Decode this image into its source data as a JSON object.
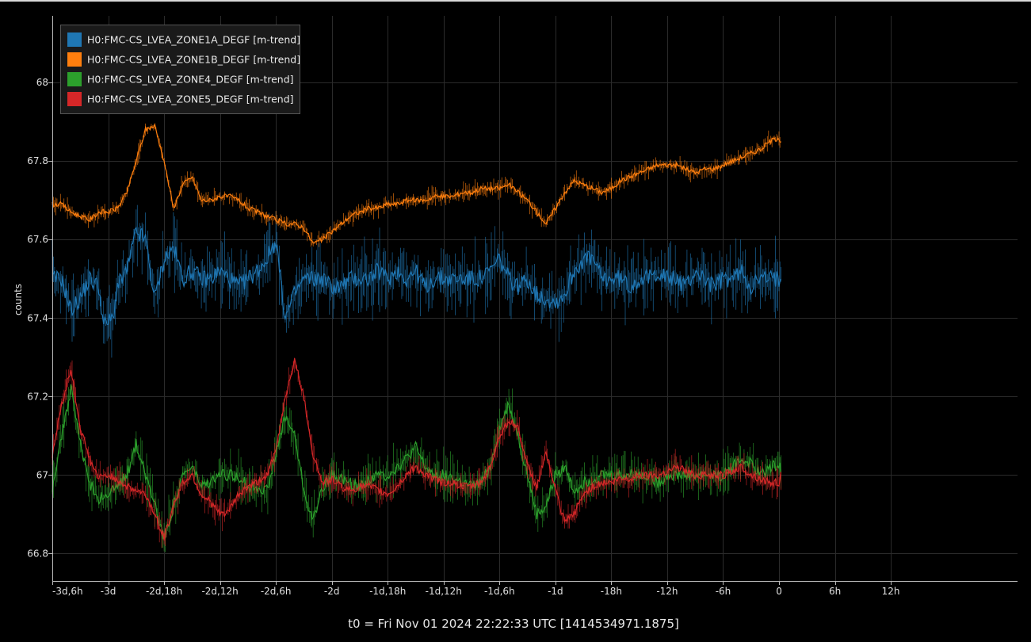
{
  "chart_data": {
    "type": "line",
    "ylabel": "counts",
    "footer": "t0 = Fri Nov 01 2024 22:22:33 UTC [1414534971.1875]",
    "xlim_hours": [
      -78,
      25.6
    ],
    "ylim": [
      66.73,
      68.17
    ],
    "grid": true,
    "legend_position": "top-left",
    "x_ticks": [
      {
        "value": -78,
        "label": "-3d,6h"
      },
      {
        "value": -72,
        "label": "-3d"
      },
      {
        "value": -66,
        "label": "-2d,18h"
      },
      {
        "value": -60,
        "label": "-2d,12h"
      },
      {
        "value": -54,
        "label": "-2d,6h"
      },
      {
        "value": -48,
        "label": "-2d"
      },
      {
        "value": -42,
        "label": "-1d,18h"
      },
      {
        "value": -36,
        "label": "-1d,12h"
      },
      {
        "value": -30,
        "label": "-1d,6h"
      },
      {
        "value": -24,
        "label": "-1d"
      },
      {
        "value": -18,
        "label": "-18h"
      },
      {
        "value": -12,
        "label": "-12h"
      },
      {
        "value": -6,
        "label": "-6h"
      },
      {
        "value": 0,
        "label": "0"
      },
      {
        "value": 6,
        "label": "6h"
      },
      {
        "value": 12,
        "label": "12h"
      }
    ],
    "y_ticks": [
      {
        "value": 66.8,
        "label": "66.8"
      },
      {
        "value": 67.0,
        "label": "67"
      },
      {
        "value": 67.2,
        "label": "67.2"
      },
      {
        "value": 67.4,
        "label": "67.4"
      },
      {
        "value": 67.6,
        "label": "67.6"
      },
      {
        "value": 67.8,
        "label": "67.8"
      },
      {
        "value": 68.0,
        "label": "68"
      }
    ],
    "series": [
      {
        "name": "H0:FMC-CS_LVEA_ZONE1A_DEGF [m-trend]",
        "color": "#1f77b4",
        "x": [
          -78,
          -77,
          -76,
          -75,
          -74,
          -73,
          -72.5,
          -71.5,
          -71,
          -70,
          -69,
          -68,
          -67,
          -66,
          -65,
          -64,
          -63,
          -62,
          -61,
          -60,
          -59,
          -58,
          -57,
          -56,
          -55,
          -54,
          -53,
          -52,
          -51,
          -50,
          -49,
          -48,
          -47,
          -46,
          -45,
          -44,
          -43,
          -42,
          -41,
          -40,
          -39,
          -38,
          -37,
          -36,
          -35,
          -34,
          -33,
          -32,
          -31,
          -30,
          -29,
          -28,
          -27,
          -26,
          -25,
          -24,
          -23,
          -22,
          -21,
          -20,
          -19,
          -18,
          -17,
          -16,
          -15,
          -14,
          -13,
          -12,
          -11,
          -10,
          -9,
          -8,
          -7,
          -6,
          -5,
          -4,
          -3,
          -2,
          -1,
          0,
          0.2
        ],
        "y": [
          67.5,
          67.5,
          67.42,
          67.45,
          67.5,
          67.48,
          67.38,
          67.4,
          67.48,
          67.52,
          67.62,
          67.6,
          67.45,
          67.55,
          67.58,
          67.5,
          67.52,
          67.5,
          67.5,
          67.52,
          67.5,
          67.48,
          67.5,
          67.52,
          67.55,
          67.6,
          67.4,
          67.46,
          67.5,
          67.5,
          67.5,
          67.48,
          67.48,
          67.5,
          67.5,
          67.5,
          67.52,
          67.5,
          67.52,
          67.5,
          67.52,
          67.48,
          67.5,
          67.5,
          67.5,
          67.5,
          67.5,
          67.5,
          67.52,
          67.55,
          67.5,
          67.48,
          67.5,
          67.46,
          67.45,
          67.44,
          67.46,
          67.52,
          67.55,
          67.55,
          67.5,
          67.5,
          67.5,
          67.48,
          67.5,
          67.5,
          67.52,
          67.5,
          67.5,
          67.48,
          67.52,
          67.5,
          67.48,
          67.5,
          67.5,
          67.52,
          67.48,
          67.5,
          67.5,
          67.5,
          67.5
        ]
      },
      {
        "name": "H0:FMC-CS_LVEA_ZONE1B_DEGF [m-trend]",
        "color": "#ff7f0e",
        "x": [
          -78,
          -77,
          -76,
          -75,
          -74,
          -73,
          -72,
          -71,
          -70,
          -69,
          -68,
          -67,
          -66,
          -65,
          -64,
          -63,
          -62,
          -61,
          -60,
          -59,
          -58,
          -57,
          -56,
          -55,
          -54,
          -53,
          -52,
          -51,
          -50,
          -49,
          -48,
          -47,
          -46,
          -45,
          -44,
          -43,
          -42,
          -41,
          -40,
          -39,
          -38,
          -37,
          -36,
          -35,
          -34,
          -33,
          -32,
          -31,
          -30,
          -29,
          -28,
          -27,
          -26,
          -25,
          -24,
          -23,
          -22,
          -21,
          -20,
          -19,
          -18,
          -17,
          -16,
          -15,
          -14,
          -13,
          -12,
          -11,
          -10,
          -9,
          -8,
          -7,
          -6,
          -5,
          -4,
          -3,
          -2,
          -1,
          0,
          0.2
        ],
        "y": [
          67.69,
          67.69,
          67.67,
          67.66,
          67.65,
          67.67,
          67.67,
          67.68,
          67.72,
          67.8,
          67.88,
          67.89,
          67.8,
          67.68,
          67.74,
          67.76,
          67.7,
          67.7,
          67.71,
          67.71,
          67.7,
          67.68,
          67.67,
          67.66,
          67.65,
          67.64,
          67.64,
          67.63,
          67.59,
          67.6,
          67.62,
          67.64,
          67.66,
          67.67,
          67.68,
          67.68,
          67.69,
          67.69,
          67.7,
          67.7,
          67.7,
          67.71,
          67.71,
          67.71,
          67.72,
          67.72,
          67.73,
          67.73,
          67.73,
          67.74,
          67.72,
          67.7,
          67.67,
          67.64,
          67.68,
          67.72,
          67.75,
          67.74,
          67.73,
          67.72,
          67.73,
          67.75,
          67.76,
          67.77,
          67.78,
          67.79,
          67.79,
          67.79,
          67.78,
          67.77,
          67.78,
          67.78,
          67.79,
          67.8,
          67.81,
          67.82,
          67.83,
          67.85,
          67.86,
          67.85
        ]
      },
      {
        "name": "H0:FMC-CS_LVEA_ZONE4_DEGF [m-trend]",
        "color": "#2ca02c",
        "x": [
          -78,
          -77,
          -76,
          -75,
          -74,
          -73,
          -72,
          -71,
          -70,
          -69,
          -68,
          -67,
          -66,
          -65,
          -64,
          -63,
          -62,
          -61,
          -60,
          -59,
          -58,
          -57,
          -56,
          -55,
          -54,
          -53,
          -52,
          -51,
          -50,
          -49,
          -48,
          -47,
          -46,
          -45,
          -44,
          -43,
          -42,
          -41,
          -40,
          -39,
          -38,
          -37,
          -36,
          -35,
          -34,
          -33,
          -32,
          -31,
          -30,
          -29,
          -28,
          -27,
          -26,
          -25,
          -24,
          -23,
          -22,
          -21,
          -20,
          -19,
          -18,
          -17,
          -16,
          -15,
          -14,
          -13,
          -12,
          -11,
          -10,
          -9,
          -8,
          -7,
          -6,
          -5,
          -4,
          -3,
          -2,
          -1,
          0,
          0.2
        ],
        "y": [
          66.97,
          67.1,
          67.22,
          67.08,
          66.98,
          66.94,
          66.95,
          66.97,
          67.0,
          67.08,
          67.0,
          66.93,
          66.84,
          66.92,
          67.0,
          67.02,
          66.97,
          66.98,
          67.0,
          67.0,
          67.0,
          66.97,
          66.97,
          66.96,
          67.05,
          67.15,
          67.1,
          66.96,
          66.88,
          66.97,
          67.0,
          66.99,
          66.98,
          66.97,
          66.99,
          67.0,
          67.0,
          67.02,
          67.04,
          67.07,
          67.02,
          67.0,
          67.0,
          66.99,
          66.98,
          66.97,
          66.98,
          67.02,
          67.12,
          67.18,
          67.1,
          67.0,
          66.9,
          66.92,
          67.0,
          67.02,
          66.96,
          66.98,
          66.99,
          67.0,
          67.0,
          67.0,
          67.0,
          67.0,
          67.0,
          66.98,
          67.0,
          67.0,
          67.0,
          67.0,
          67.0,
          67.0,
          67.0,
          67.02,
          67.04,
          67.03,
          67.0,
          67.02,
          67.03,
          67.02
        ]
      },
      {
        "name": "H0:FMC-CS_LVEA_ZONE5_DEGF [m-trend]",
        "color": "#d62728",
        "x": [
          -78,
          -77,
          -76,
          -75,
          -74,
          -73,
          -72,
          -71,
          -70,
          -69,
          -68,
          -67,
          -66,
          -65,
          -64,
          -63,
          -62,
          -61,
          -60,
          -59,
          -58,
          -57,
          -56,
          -55,
          -54,
          -53,
          -52,
          -51,
          -50,
          -49,
          -48,
          -47,
          -46,
          -45,
          -44,
          -43,
          -42,
          -41,
          -40,
          -39,
          -38,
          -37,
          -36,
          -35,
          -34,
          -33,
          -32,
          -31,
          -30,
          -29,
          -28,
          -27,
          -26,
          -25,
          -24,
          -23,
          -22,
          -21,
          -20,
          -19,
          -18,
          -17,
          -16,
          -15,
          -14,
          -13,
          -12,
          -11,
          -10,
          -9,
          -8,
          -7,
          -6,
          -5,
          -4,
          -3,
          -2,
          -1,
          0,
          0.2
        ],
        "y": [
          67.05,
          67.18,
          67.27,
          67.12,
          67.04,
          66.99,
          67.0,
          66.99,
          66.97,
          66.96,
          66.95,
          66.9,
          66.84,
          66.92,
          66.98,
          67.0,
          66.95,
          66.93,
          66.9,
          66.91,
          66.95,
          66.97,
          66.98,
          67.0,
          67.06,
          67.2,
          67.29,
          67.2,
          67.05,
          66.98,
          66.99,
          66.97,
          66.96,
          66.97,
          66.97,
          66.96,
          66.95,
          66.97,
          67.0,
          67.02,
          67.0,
          66.99,
          66.98,
          66.98,
          66.97,
          66.97,
          66.98,
          67.02,
          67.1,
          67.14,
          67.12,
          67.02,
          66.97,
          67.06,
          66.96,
          66.88,
          66.9,
          66.95,
          66.97,
          66.98,
          66.98,
          66.99,
          66.99,
          67.0,
          67.0,
          67.0,
          67.01,
          67.02,
          67.01,
          67.0,
          67.0,
          67.0,
          67.0,
          67.01,
          67.02,
          67.0,
          66.99,
          66.98,
          66.98,
          67.0
        ]
      }
    ]
  }
}
